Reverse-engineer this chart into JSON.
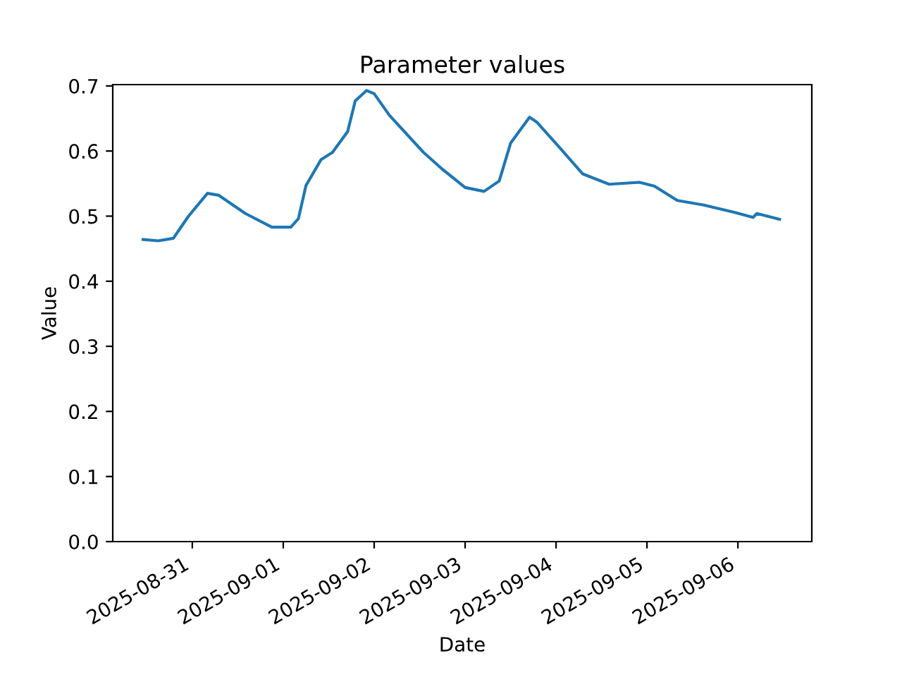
{
  "chart_data": {
    "type": "line",
    "title": "Parameter values",
    "xlabel": "Date",
    "ylabel": "Value",
    "x": [
      "2025-08-30T11:00",
      "2025-08-30T15:00",
      "2025-08-30T19:00",
      "2025-08-30T23:00",
      "2025-08-31T04:00",
      "2025-08-31T07:00",
      "2025-08-31T14:00",
      "2025-08-31T21:00",
      "2025-09-01T02:00",
      "2025-09-01T04:00",
      "2025-09-01T06:00",
      "2025-09-01T10:00",
      "2025-09-01T13:00",
      "2025-09-01T17:00",
      "2025-09-01T19:00",
      "2025-09-01T22:00",
      "2025-09-02T00:00",
      "2025-09-02T04:00",
      "2025-09-02T13:00",
      "2025-09-02T18:00",
      "2025-09-03T00:00",
      "2025-09-03T05:00",
      "2025-09-03T09:00",
      "2025-09-03T12:00",
      "2025-09-03T17:00",
      "2025-09-03T19:00",
      "2025-09-04T01:00",
      "2025-09-04T07:00",
      "2025-09-04T14:00",
      "2025-09-04T22:00",
      "2025-09-05T02:00",
      "2025-09-05T08:00",
      "2025-09-05T15:00",
      "2025-09-05T23:00",
      "2025-09-06T04:00",
      "2025-09-06T05:00",
      "2025-09-06T11:00"
    ],
    "series": [
      {
        "color": "#1f77b4",
        "values": [
          0.464,
          0.462,
          0.466,
          0.5,
          0.535,
          0.532,
          0.504,
          0.483,
          0.483,
          0.496,
          0.547,
          0.587,
          0.598,
          0.63,
          0.677,
          0.693,
          0.688,
          0.655,
          0.598,
          0.572,
          0.544,
          0.538,
          0.554,
          0.612,
          0.652,
          0.644,
          0.605,
          0.565,
          0.549,
          0.552,
          0.546,
          0.524,
          0.517,
          0.506,
          0.498,
          0.504,
          0.495
        ]
      }
    ],
    "xlim": [
      "2025-08-30T03:00",
      "2025-09-06T19:30"
    ],
    "xticks": [
      {
        "value": "2025-08-31",
        "label": "2025-08-31"
      },
      {
        "value": "2025-09-01",
        "label": "2025-09-01"
      },
      {
        "value": "2025-09-02",
        "label": "2025-09-02"
      },
      {
        "value": "2025-09-03",
        "label": "2025-09-03"
      },
      {
        "value": "2025-09-04",
        "label": "2025-09-04"
      },
      {
        "value": "2025-09-05",
        "label": "2025-09-05"
      },
      {
        "value": "2025-09-06",
        "label": "2025-09-06"
      }
    ],
    "ylim": [
      0,
      0.702
    ],
    "yticks": [
      {
        "value": 0,
        "label": "0.0"
      },
      {
        "value": 0.1,
        "label": "0.1"
      },
      {
        "value": 0.2,
        "label": "0.2"
      },
      {
        "value": 0.3,
        "label": "0.3"
      },
      {
        "value": 0.4,
        "label": "0.4"
      },
      {
        "value": 0.5,
        "label": "0.5"
      },
      {
        "value": 0.6,
        "label": "0.6"
      },
      {
        "value": 0.7,
        "label": "0.7"
      }
    ],
    "grid": false
  }
}
